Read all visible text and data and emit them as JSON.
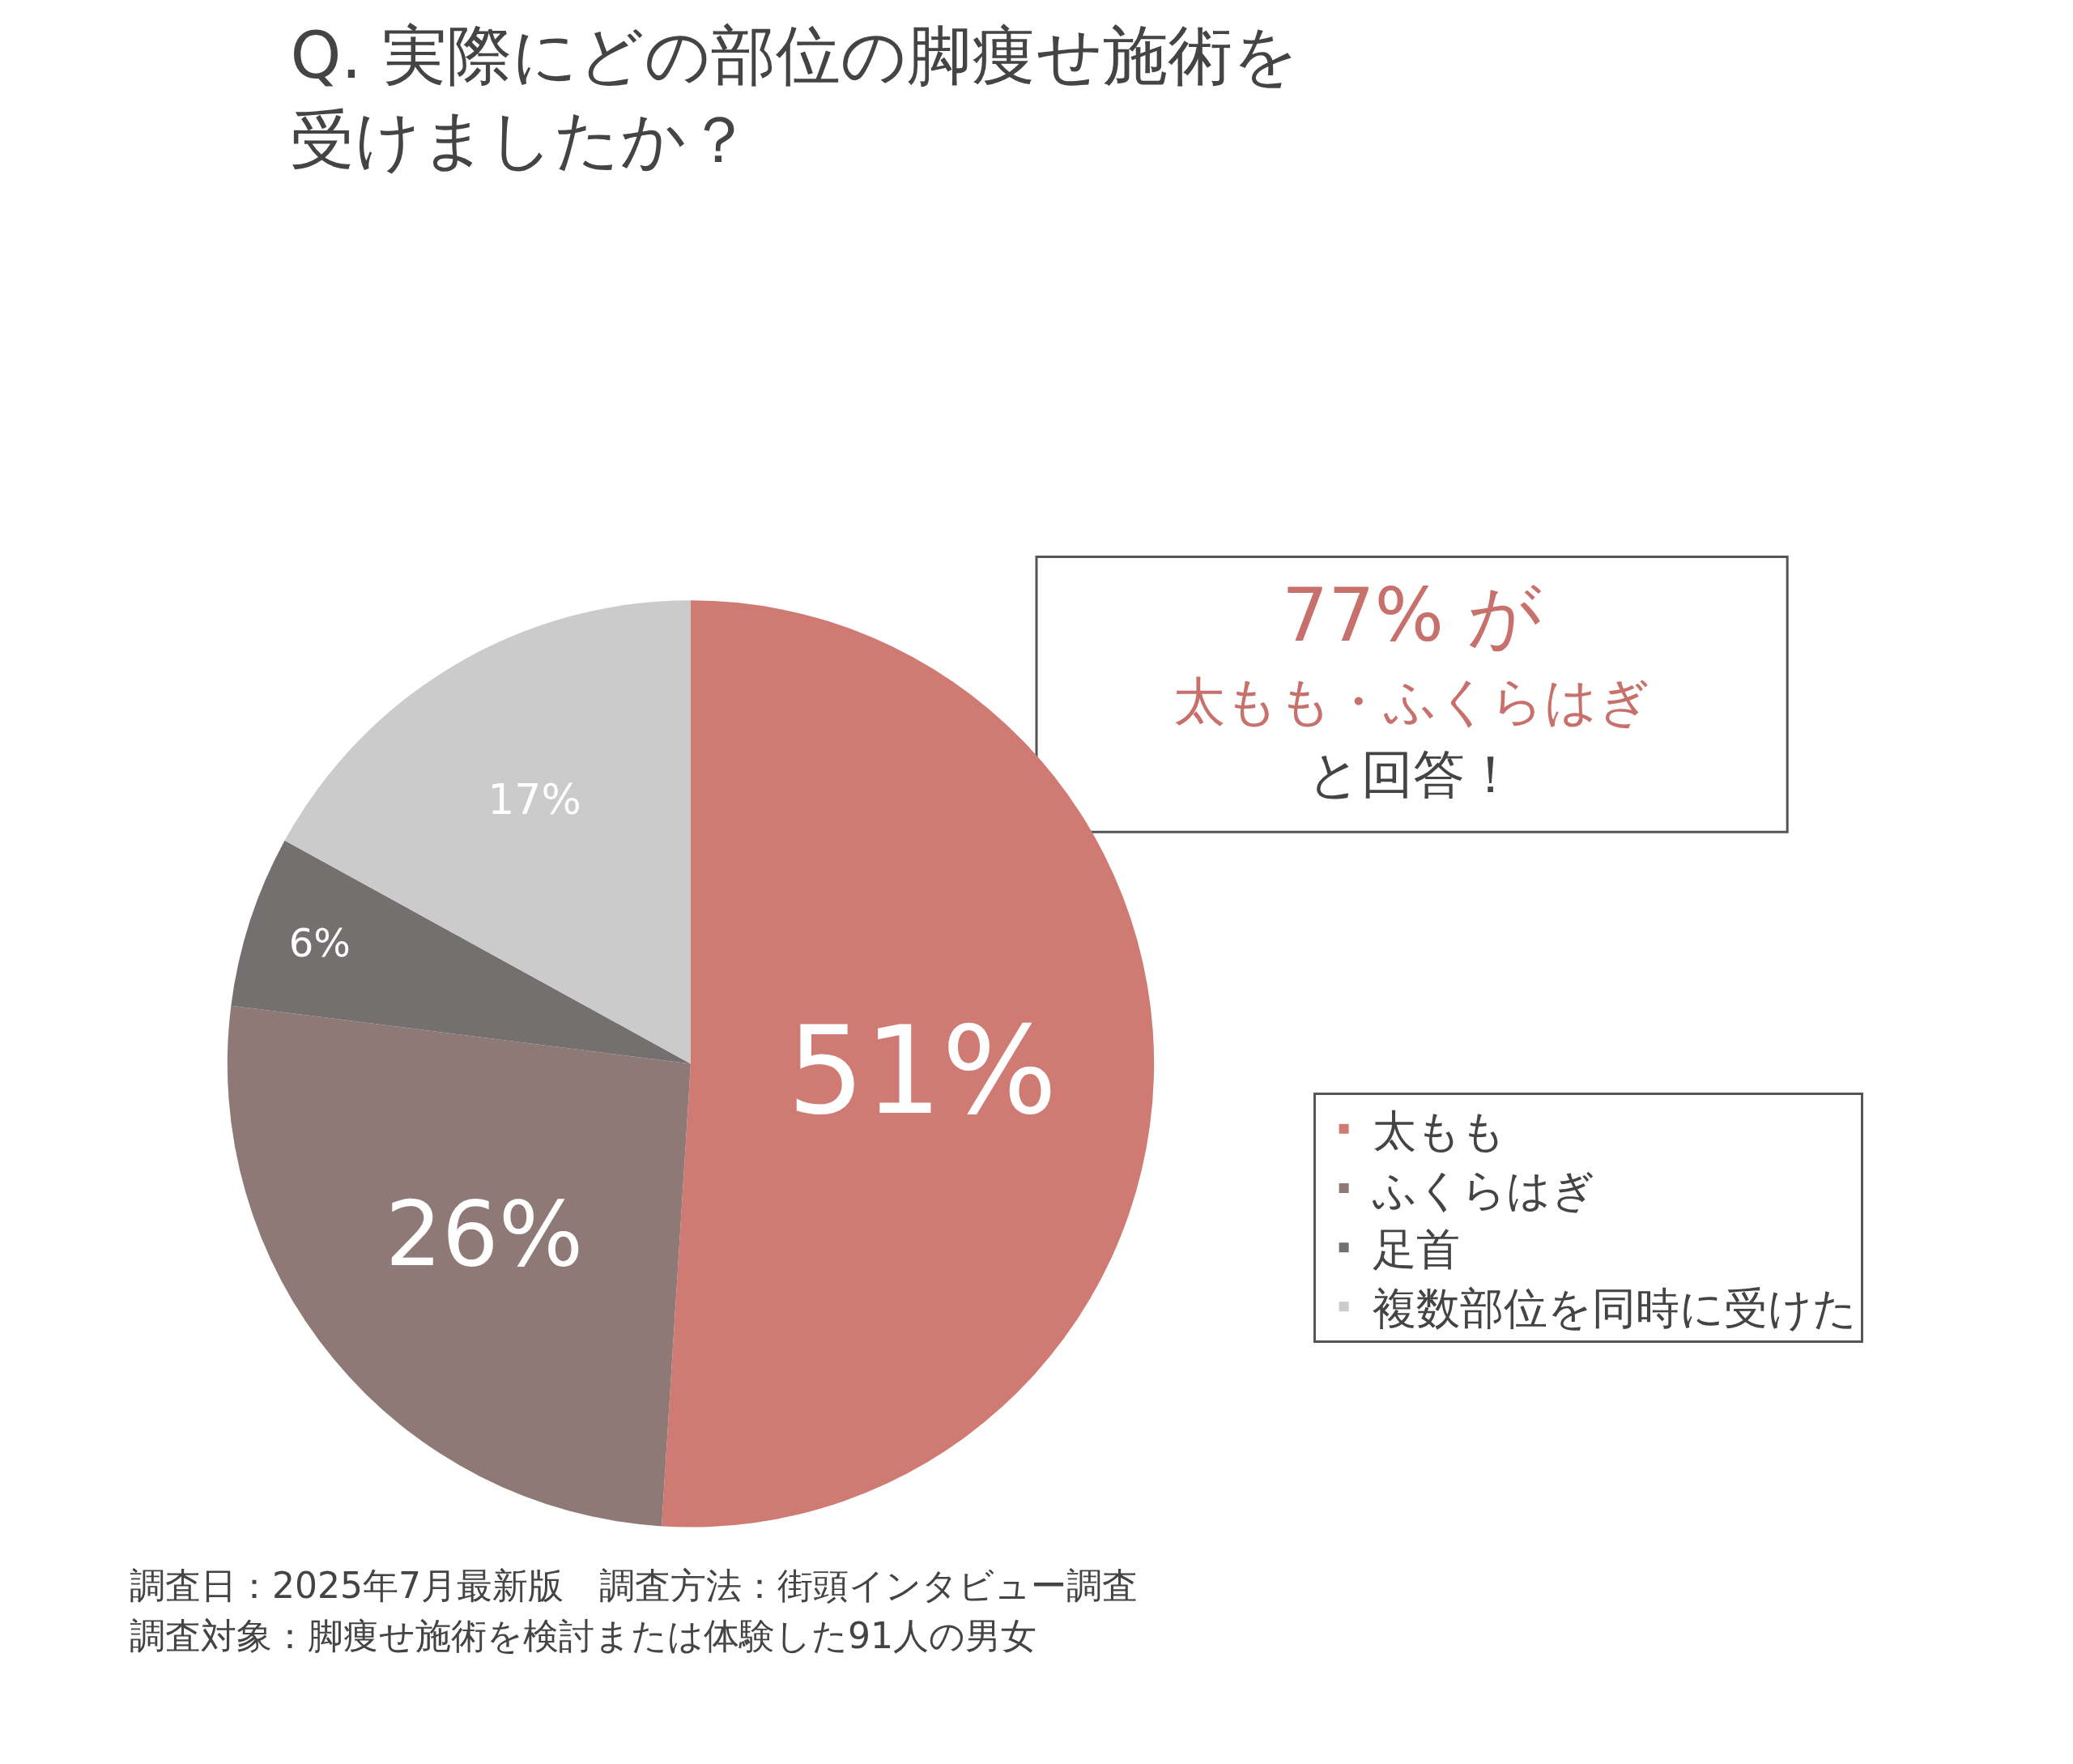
{
  "chart_data": {
    "type": "pie",
    "title": "Q. 実際にどの部位の脚痩せ施術を受けましたか？",
    "categories": [
      "太もも",
      "ふくらはぎ",
      "足首",
      "複数部位を同時に受けた"
    ],
    "values": [
      51,
      26,
      6,
      17
    ],
    "colors": [
      "#d07a74",
      "#8e7977",
      "#747070",
      "#cbcbcb"
    ],
    "value_labels": [
      "51%",
      "26%",
      "6%",
      "17%"
    ],
    "legend": "right",
    "annotations": [
      "77% が",
      "太もも・ふくらはぎ",
      "と回答！",
      "調査日：2025年7月最新版　調査方法：街頭インタビュー調査",
      "調査対象：脚痩せ施術を検討または体験した91人の男女"
    ]
  }
}
